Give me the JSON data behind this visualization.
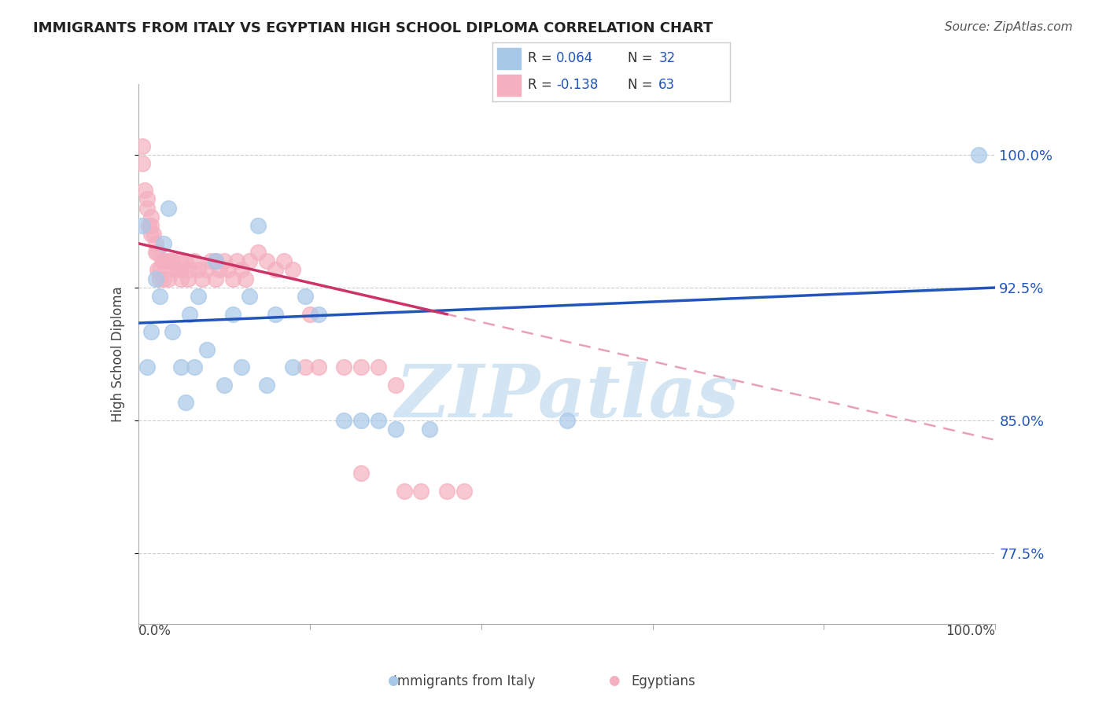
{
  "title": "IMMIGRANTS FROM ITALY VS EGYPTIAN HIGH SCHOOL DIPLOMA CORRELATION CHART",
  "source": "Source: ZipAtlas.com",
  "ylabel": "High School Diploma",
  "ytick_labels": [
    "77.5%",
    "85.0%",
    "92.5%",
    "100.0%"
  ],
  "ytick_values": [
    0.775,
    0.85,
    0.925,
    1.0
  ],
  "xlim": [
    0.0,
    1.0
  ],
  "ylim": [
    0.735,
    1.04
  ],
  "blue_color": "#a8c8e8",
  "pink_color": "#f4b0c0",
  "trend_blue_color": "#2255bb",
  "trend_pink_color": "#cc3366",
  "trend_dashed_color": "#e8a0b8",
  "watermark_color": "#c8dff0",
  "blue_scatter_x": [
    0.005,
    0.01,
    0.015,
    0.02,
    0.025,
    0.03,
    0.035,
    0.04,
    0.05,
    0.055,
    0.06,
    0.065,
    0.07,
    0.08,
    0.09,
    0.1,
    0.11,
    0.12,
    0.13,
    0.14,
    0.15,
    0.16,
    0.18,
    0.195,
    0.21,
    0.24,
    0.26,
    0.28,
    0.3,
    0.34,
    0.5,
    0.98
  ],
  "blue_scatter_y": [
    0.96,
    0.88,
    0.9,
    0.93,
    0.92,
    0.95,
    0.97,
    0.9,
    0.88,
    0.86,
    0.91,
    0.88,
    0.92,
    0.89,
    0.94,
    0.87,
    0.91,
    0.88,
    0.92,
    0.96,
    0.87,
    0.91,
    0.88,
    0.92,
    0.91,
    0.85,
    0.85,
    0.85,
    0.845,
    0.845,
    0.85,
    1.0
  ],
  "pink_scatter_x": [
    0.005,
    0.005,
    0.008,
    0.01,
    0.01,
    0.012,
    0.015,
    0.015,
    0.015,
    0.018,
    0.02,
    0.02,
    0.022,
    0.022,
    0.025,
    0.025,
    0.028,
    0.03,
    0.03,
    0.032,
    0.035,
    0.038,
    0.04,
    0.042,
    0.045,
    0.048,
    0.05,
    0.05,
    0.055,
    0.058,
    0.06,
    0.065,
    0.07,
    0.075,
    0.08,
    0.085,
    0.09,
    0.09,
    0.095,
    0.1,
    0.105,
    0.11,
    0.115,
    0.12,
    0.125,
    0.13,
    0.14,
    0.15,
    0.16,
    0.17,
    0.18,
    0.195,
    0.21,
    0.24,
    0.26,
    0.28,
    0.3,
    0.31,
    0.33,
    0.36,
    0.38,
    0.2,
    0.26
  ],
  "pink_scatter_y": [
    1.005,
    0.995,
    0.98,
    0.97,
    0.975,
    0.96,
    0.965,
    0.955,
    0.96,
    0.955,
    0.95,
    0.945,
    0.945,
    0.935,
    0.935,
    0.93,
    0.94,
    0.94,
    0.93,
    0.94,
    0.93,
    0.94,
    0.94,
    0.935,
    0.935,
    0.94,
    0.935,
    0.93,
    0.94,
    0.93,
    0.935,
    0.94,
    0.935,
    0.93,
    0.935,
    0.94,
    0.93,
    0.94,
    0.935,
    0.94,
    0.935,
    0.93,
    0.94,
    0.935,
    0.93,
    0.94,
    0.945,
    0.94,
    0.935,
    0.94,
    0.935,
    0.88,
    0.88,
    0.88,
    0.88,
    0.88,
    0.87,
    0.81,
    0.81,
    0.81,
    0.81,
    0.91,
    0.82
  ]
}
